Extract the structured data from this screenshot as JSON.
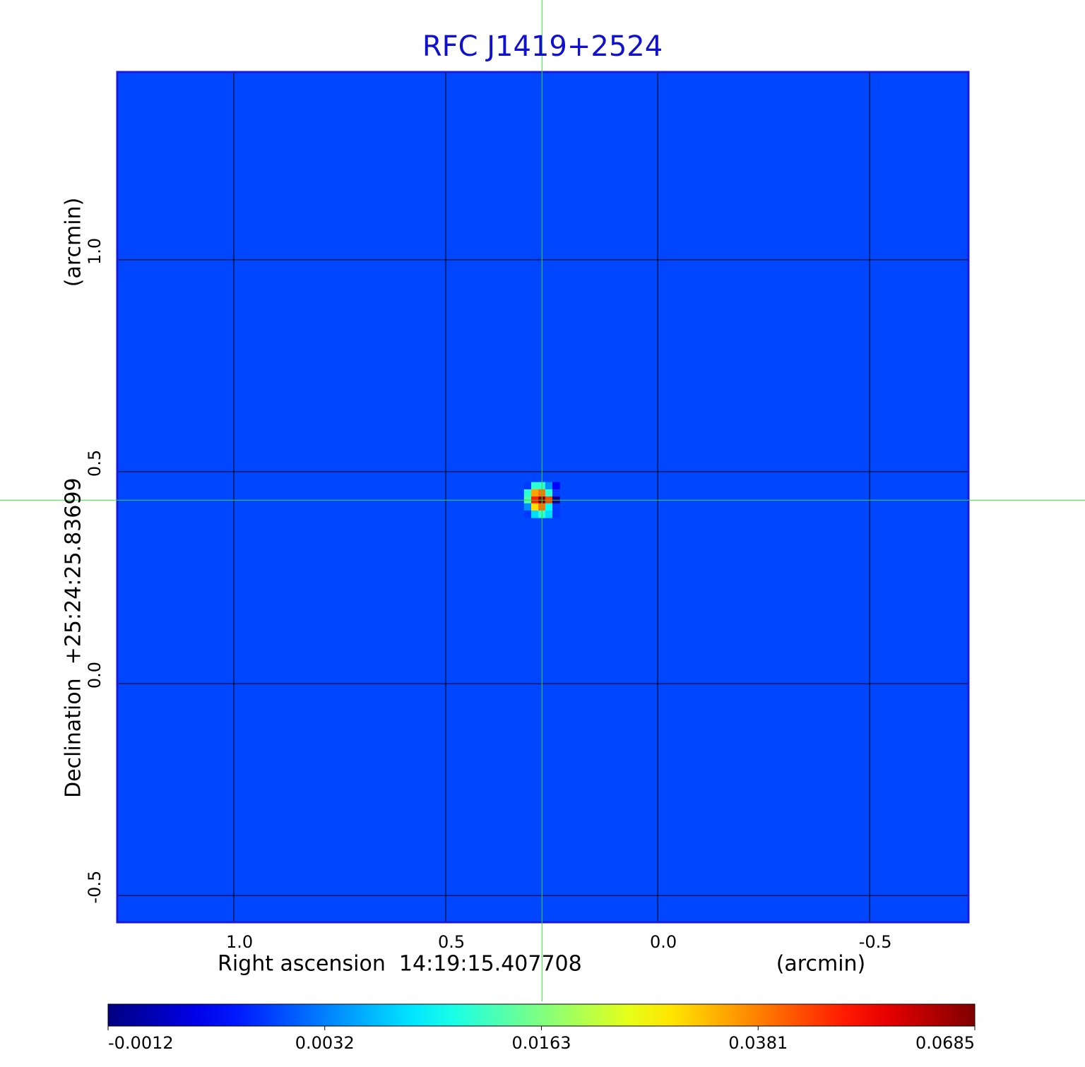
{
  "chart_data": {
    "type": "image",
    "title": "RFC J1419+2524",
    "xlabel": "Right ascension  14:19:15.407708",
    "xunit": "(arcmin)",
    "ylabel": "Declination  +25:24:25.83699",
    "yunit": "(arcmin)",
    "xlim": [
      1.275,
      -0.733
    ],
    "ylim": [
      -0.563,
      1.443
    ],
    "xticks": [
      {
        "value": 1,
        "label": "1.0"
      },
      0.5,
      {
        "value": 0,
        "label": "0.0"
      },
      -0.5
    ],
    "yticks": [
      -0.5,
      {
        "value": 0,
        "label": "0.0"
      },
      0.5,
      {
        "value": 1,
        "label": "1.0"
      }
    ],
    "grid": true,
    "crosshair": [
      0.273,
      0.433
    ],
    "image": {
      "background": 0.0022,
      "x": [
        0.307,
        0.29,
        0.273,
        0.257,
        0.24
      ],
      "y": [
        0.467,
        0.45,
        0.433,
        0.417,
        0.4
      ],
      "values": [
        [
          0.002,
          0.012,
          0.012,
          0.004,
          0.001
        ],
        [
          0.012,
          0.035,
          0.04,
          0.012,
          0.002
        ],
        [
          0.014,
          0.05,
          0.0685,
          0.045,
          -0.001
        ],
        [
          0.004,
          0.03,
          0.04,
          0.01,
          0.002
        ],
        [
          0.002,
          0.008,
          0.012,
          0.008,
          0.002
        ]
      ]
    },
    "colorbar_ticks": [
      -0.0012,
      0.0032,
      0.0163,
      0.0381,
      0.0685
    ]
  }
}
